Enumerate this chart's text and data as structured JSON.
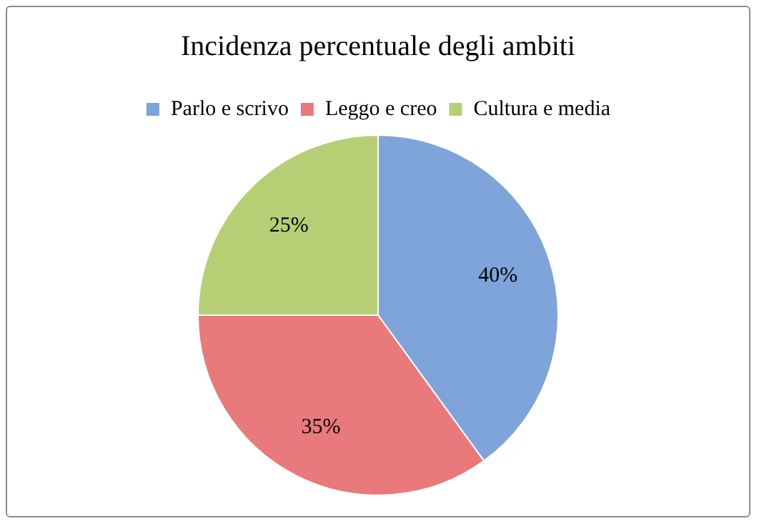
{
  "chart_data": {
    "type": "pie",
    "title": "Incidenza percentuale degli ambiti",
    "categories": [
      "Parlo e scrivo",
      "Leggo e creo",
      "Cultura e media"
    ],
    "values": [
      40,
      35,
      25
    ],
    "colors": [
      "#7ea4da",
      "#e9797a",
      "#b6cf74"
    ],
    "value_labels": [
      "40%",
      "35%",
      "25%"
    ],
    "legend": "top"
  }
}
